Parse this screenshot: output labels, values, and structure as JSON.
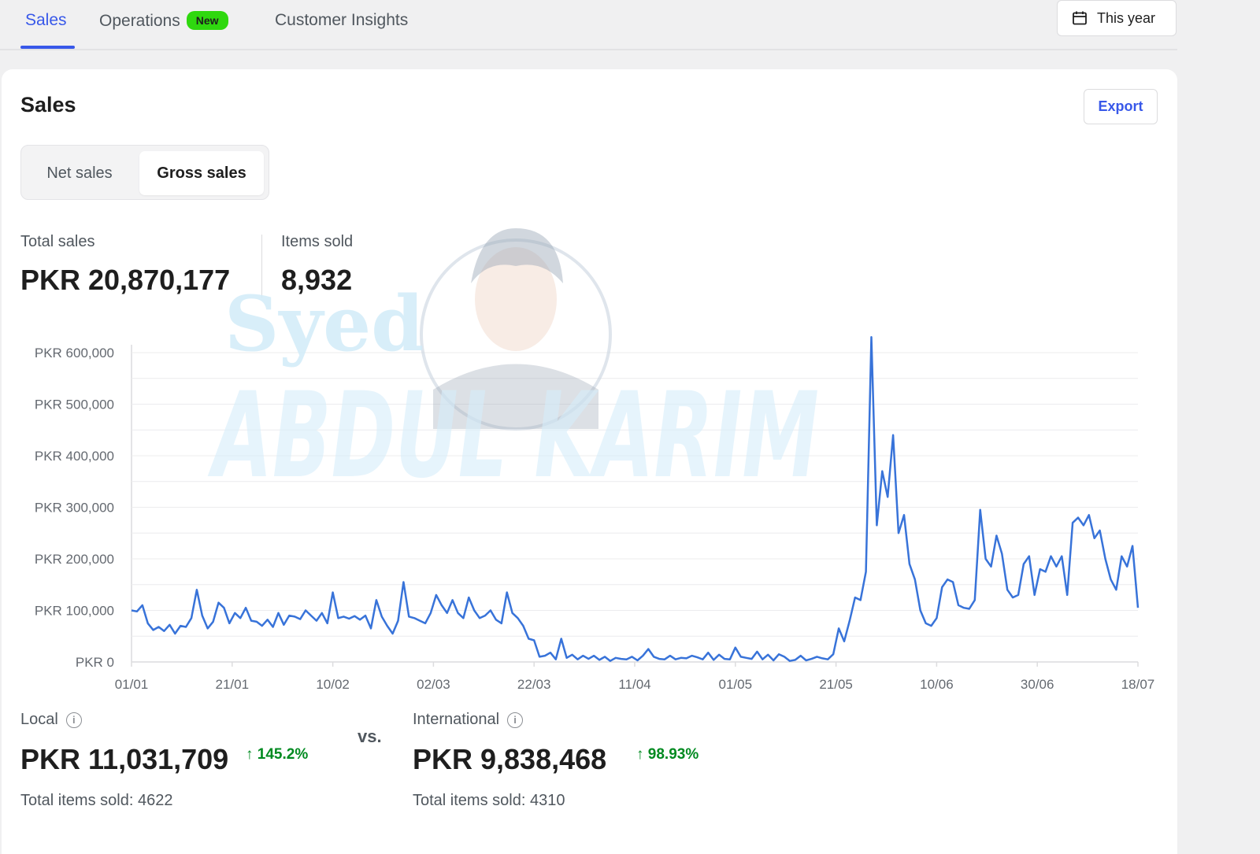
{
  "tabs": [
    {
      "label": "Sales",
      "active": true
    },
    {
      "label": "Operations",
      "badge": "New"
    },
    {
      "label": "Customer Insights"
    }
  ],
  "date_range": {
    "label": "This year",
    "icon": "calendar-icon"
  },
  "card": {
    "title": "Sales",
    "export_label": "Export",
    "toggle": {
      "options": [
        "Net sales",
        "Gross sales"
      ],
      "selected": "Gross sales"
    }
  },
  "stats": {
    "total_sales_label": "Total sales",
    "total_sales_value": "PKR 20,870,177",
    "items_sold_label": "Items sold",
    "items_sold_value": "8,932"
  },
  "watermark": {
    "line1": "Syed",
    "line2": "ABDUL KARIM"
  },
  "chart_data": {
    "type": "line",
    "title": "",
    "xlabel": "",
    "ylabel": "",
    "ylim": [
      0,
      600000
    ],
    "y_ticks": [
      "PKR 0",
      "PKR 100,000",
      "PKR 200,000",
      "PKR 300,000",
      "PKR 400,000",
      "PKR 500,000",
      "PKR 600,000"
    ],
    "x_ticks": [
      "01/01",
      "21/01",
      "10/02",
      "02/03",
      "22/03",
      "11/04",
      "01/05",
      "21/05",
      "10/06",
      "30/06",
      "18/07"
    ],
    "grid": true,
    "color": "#3873d9",
    "series": [
      {
        "values": [
          100000,
          98000,
          110000,
          75000,
          62000,
          68000,
          60000,
          72000,
          55000,
          70000,
          68000,
          85000,
          140000,
          90000,
          65000,
          78000,
          115000,
          105000,
          75000,
          95000,
          85000,
          105000,
          80000,
          78000,
          70000,
          82000,
          68000,
          95000,
          72000,
          90000,
          88000,
          83000,
          100000,
          90000,
          80000,
          95000,
          75000,
          135000,
          85000,
          88000,
          84000,
          89000,
          82000,
          90000,
          65000,
          120000,
          88000,
          70000,
          55000,
          80000,
          155000,
          88000,
          85000,
          80000,
          75000,
          95000,
          130000,
          110000,
          95000,
          120000,
          95000,
          85000,
          125000,
          100000,
          85000,
          90000,
          100000,
          82000,
          75000,
          135000,
          95000,
          85000,
          70000,
          45000,
          42000,
          10000,
          12000,
          18000,
          5000,
          45000,
          8000,
          14000,
          5000,
          12000,
          6000,
          12000,
          4000,
          10000,
          2000,
          8000,
          6000,
          5000,
          10000,
          3000,
          12000,
          25000,
          10000,
          6000,
          5000,
          12000,
          5000,
          8000,
          7000,
          12000,
          9000,
          5000,
          18000,
          4000,
          14000,
          6000,
          5000,
          28000,
          10000,
          8000,
          6000,
          20000,
          5000,
          14000,
          3000,
          15000,
          10000,
          2000,
          4000,
          12000,
          3000,
          6000,
          10000,
          7000,
          5000,
          15000,
          65000,
          40000,
          80000,
          125000,
          120000,
          175000,
          630000,
          265000,
          370000,
          320000,
          440000,
          250000,
          285000,
          190000,
          160000,
          100000,
          75000,
          70000,
          85000,
          145000,
          160000,
          155000,
          110000,
          105000,
          103000,
          120000,
          295000,
          200000,
          185000,
          245000,
          210000,
          140000,
          125000,
          130000,
          190000,
          205000,
          130000,
          180000,
          175000,
          205000,
          185000,
          205000,
          130000,
          270000,
          280000,
          265000,
          285000,
          240000,
          255000,
          200000,
          160000,
          140000,
          205000,
          185000,
          225000,
          105000
        ]
      }
    ]
  },
  "local": {
    "label": "Local",
    "value": "PKR 11,031,709",
    "delta": "145.2%",
    "items_sold": "Total items sold: 4622"
  },
  "vs_label": "vs.",
  "international": {
    "label": "International",
    "value": "PKR 9,838,468",
    "delta": "98.93%",
    "items_sold": "Total items sold: 4310"
  }
}
